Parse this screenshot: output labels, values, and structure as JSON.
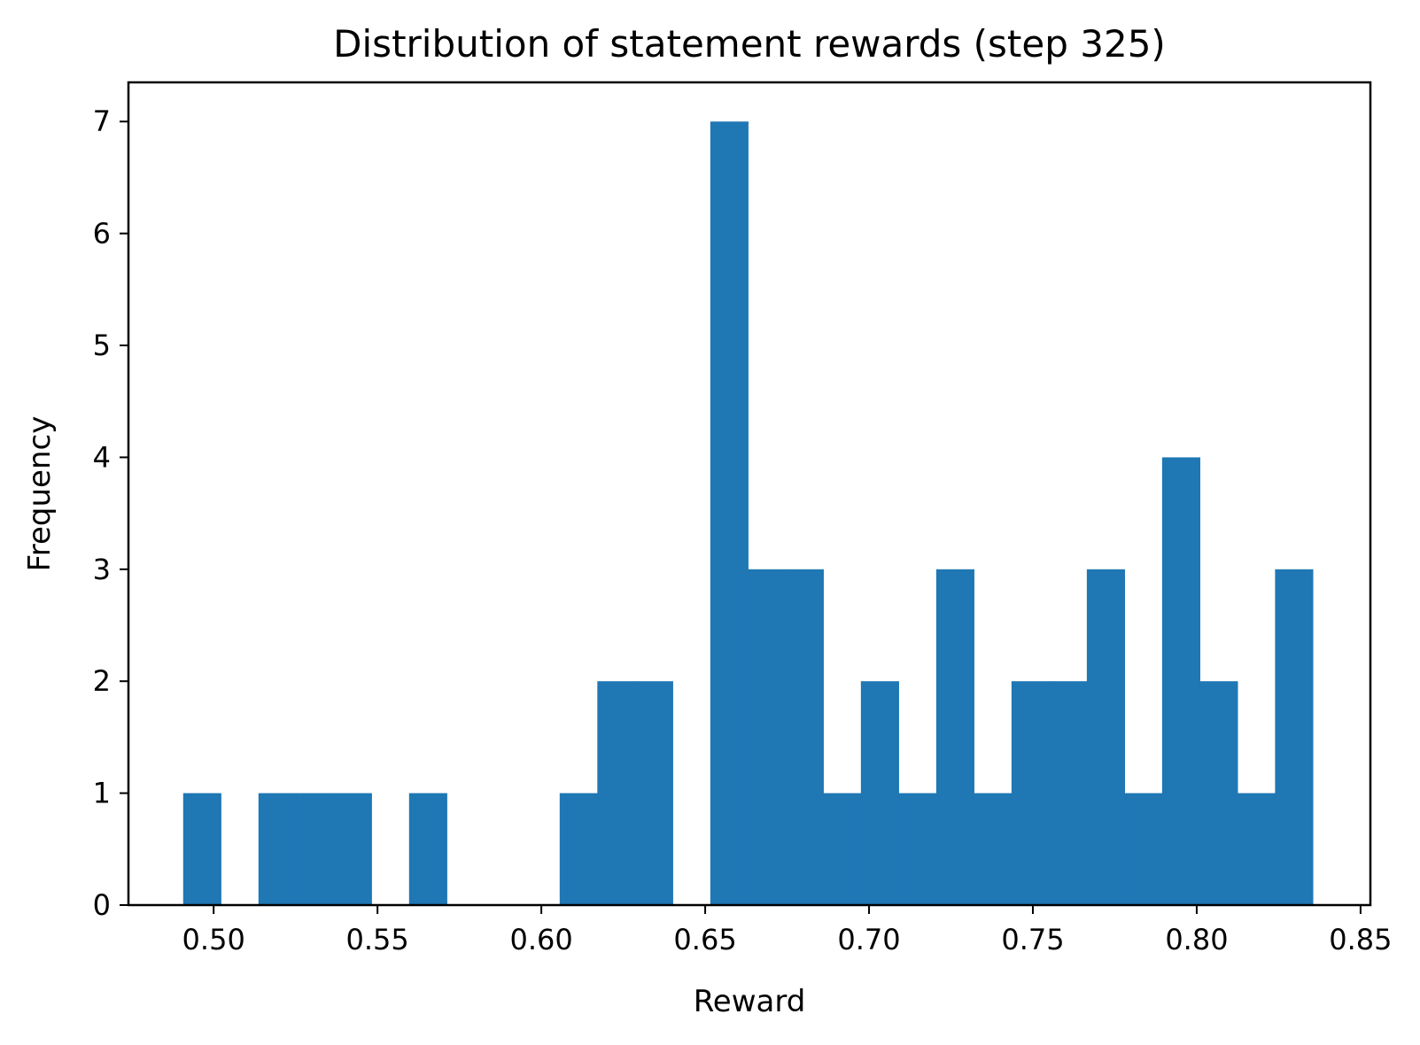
{
  "chart_data": {
    "type": "bar",
    "title": "Distribution of statement rewards (step 325)",
    "xlabel": "Reward",
    "ylabel": "Frequency",
    "xlim": [
      0.474,
      0.853
    ],
    "ylim": [
      0,
      7.35
    ],
    "xticks": [
      0.5,
      0.55,
      0.6,
      0.65,
      0.7,
      0.75,
      0.8,
      0.85
    ],
    "xtick_labels": [
      "0.50",
      "0.55",
      "0.60",
      "0.65",
      "0.70",
      "0.75",
      "0.80",
      "0.85"
    ],
    "yticks": [
      0,
      1,
      2,
      3,
      4,
      5,
      6,
      7
    ],
    "ytick_labels": [
      "0",
      "1",
      "2",
      "3",
      "4",
      "5",
      "6",
      "7"
    ],
    "bin_start": 0.4907,
    "bin_width": 0.01149,
    "frequencies": [
      1,
      0,
      1,
      1,
      1,
      0,
      1,
      0,
      0,
      0,
      1,
      2,
      2,
      0,
      7,
      3,
      3,
      1,
      2,
      1,
      3,
      1,
      2,
      2,
      3,
      1,
      4,
      2,
      1,
      3
    ],
    "bar_color": "#1f77b4",
    "grid": false,
    "legend": "none"
  }
}
